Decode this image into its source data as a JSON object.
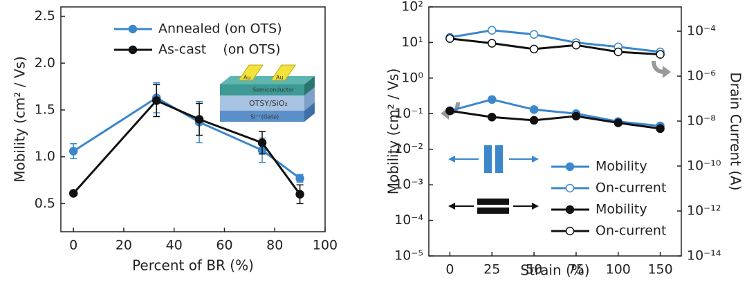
{
  "chart_data": [
    {
      "type": "line",
      "x_label": "Percent of BR (%)",
      "y_label": "Mobility (cm² / Vs)",
      "x": [
        0,
        33,
        50,
        75,
        90
      ],
      "series": [
        {
          "name": "Annealed (on OTS)",
          "color": "#3a87cc",
          "marker": "filled",
          "values": [
            1.06,
            1.63,
            1.37,
            1.07,
            0.77
          ],
          "errors": [
            0.08,
            0.16,
            0.22,
            0.13,
            0.04
          ]
        },
        {
          "name": "As-cast    (on OTS)",
          "color": "#111111",
          "marker": "filled",
          "values": [
            0.61,
            1.6,
            1.4,
            1.15,
            0.6
          ],
          "errors": [
            0.02,
            0.17,
            0.17,
            0.12,
            0.1
          ]
        }
      ],
      "xlim": [
        -5,
        100
      ],
      "xticks": [
        0,
        20,
        40,
        60,
        80,
        100
      ],
      "ylim": [
        0.2,
        2.6
      ],
      "yticks": [
        0.5,
        {
          "value": 1.0,
          "label": "1.0"
        },
        1.5,
        {
          "value": 2.0,
          "label": "2.0"
        },
        2.5
      ],
      "legend": "upper right",
      "inset_labels": [
        "Au",
        "Au",
        "Semiconductor",
        "OTSY/SiO₂",
        "Si⁺⁺(Gate)"
      ]
    },
    {
      "type": "line",
      "x_label": "Strain (%)",
      "y_label": "Mobility (cm² / Vs)",
      "y2_label": "Drain Current (A)",
      "log_scale": true,
      "categories": [
        "0",
        "25",
        "50",
        "75",
        "100",
        "150"
      ],
      "series": [
        {
          "name": "Mobility",
          "color": "#3a87cc",
          "marker": "filled",
          "values": [
            0.12,
            0.25,
            0.13,
            0.1,
            0.06,
            0.045
          ]
        },
        {
          "name": "On-current",
          "color": "#3a87cc",
          "marker": "open",
          "axis": "y2",
          "values": [
            5.3e-05,
            0.00011,
            7.2e-05,
            3.1e-05,
            2e-05,
            1.2e-05
          ]
        },
        {
          "name": "Mobility",
          "color": "#111111",
          "marker": "filled",
          "values": [
            0.12,
            0.08,
            0.065,
            0.085,
            0.055,
            0.038
          ]
        },
        {
          "name": "On-current",
          "color": "#111111",
          "marker": "open",
          "axis": "y2",
          "values": [
            4.7e-05,
            2.9e-05,
            1.6e-05,
            2.4e-05,
            1.2e-05,
            9.3e-06
          ]
        }
      ],
      "ylim": [
        1e-05,
        100
      ],
      "yticks": [
        {
          "value": 1e-05,
          "label": "10⁻⁵"
        },
        {
          "value": 0.0001,
          "label": "10⁻⁴"
        },
        {
          "value": 0.001,
          "label": "10⁻³"
        },
        {
          "value": 0.01,
          "label": "10⁻²"
        },
        {
          "value": 0.1,
          "label": "10⁻¹"
        },
        {
          "value": 1,
          "label": "10⁰"
        },
        {
          "value": 10,
          "label": "10¹"
        },
        {
          "value": 100,
          "label": "10²"
        }
      ],
      "y2lim": [
        1e-14,
        0.0012
      ],
      "y2ticks": [
        {
          "value": 1e-14,
          "label": "10⁻¹⁴"
        },
        {
          "value": 1e-12,
          "label": "10⁻¹²"
        },
        {
          "value": 1e-10,
          "label": "10⁻¹⁰"
        },
        {
          "value": 1e-08,
          "label": "10⁻⁸"
        },
        {
          "value": 1e-06,
          "label": "10⁻⁶"
        },
        {
          "value": 0.0001,
          "label": "10⁻⁴"
        }
      ],
      "legend": "lower right"
    }
  ]
}
